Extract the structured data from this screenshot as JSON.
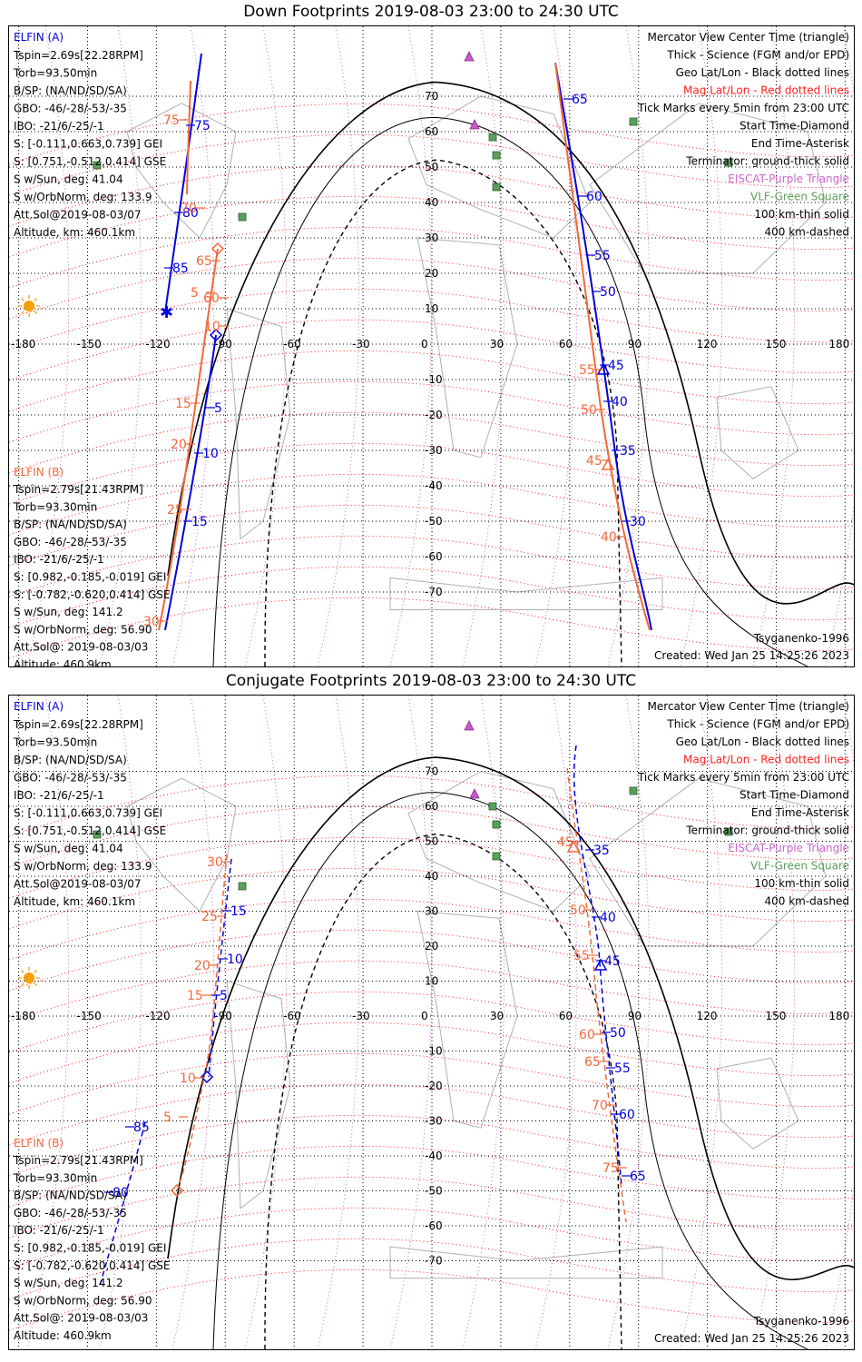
{
  "colors": {
    "sc_a": "#0000dd",
    "sc_b": "#f4673a",
    "mag_grid": "#ff2020",
    "geo_grid": "#000000",
    "isr": "#cc66cc",
    "vlf": "#5aa05a",
    "coast": "#b0b0b0"
  },
  "panels": [
    {
      "title": "Down Footprints 2019-08-03 23:00 to 24:30 UTC",
      "elfin_a": {
        "header": "ELFIN (A)",
        "lines": [
          "Tspin=2.69s[22.28RPM]",
          "Torb=93.50min",
          "B/SP: (NA/ND/SD/SA)",
          "GBO: -46/-28/-53/-35",
          "IBO: -21/6/-25/-1",
          "S: [-0.111,0.663,0.739] GEI",
          "S: [0.751,-0.512,0.414] GSE",
          "S w/Sun, deg: 41.04",
          "S w/OrbNorm, deg: 133.9",
          "Att.Sol@2019-08-03/07",
          "Altitude, km: 460.1km"
        ]
      },
      "elfin_b": {
        "header": "ELFIN (B)",
        "lines": [
          "Tspin=2.79s[21.43RPM]",
          "Torb=93.30min",
          "B/SP: (NA/ND/SD/SA)",
          "GBO: -46/-28/-53/-35",
          "IBO: -21/6/-25/-1",
          "S: [0.982,-0.185,-0.019] GEI",
          "S: [-0.782,-0.620,0.414] GSE",
          "S w/Sun, deg: 141.2",
          "S w/OrbNorm, deg: 56.90",
          "Att.Sol@: 2019-08-03/03",
          "Altitude: 460.9km"
        ]
      },
      "legend": [
        "Mercator View Center Time (triangle)",
        "Thick - Science (FGM and/or EPD)",
        "Geo Lat/Lon - Black dotted lines",
        "Mag Lat/Lon - Red dotted lines",
        "Tick Marks every 5min from 23:00 UTC",
        "Start Time-Diamond",
        "End Time-Asterisk",
        "Terminator: ground-thick solid",
        "EISCAT-Purple Triangle",
        "VLF-Green Square",
        "100 km-thin solid",
        "400 km-dashed"
      ],
      "model": "Tsyganenko-1996",
      "created": "Created: Wed Jan 25 14:25:26 2023",
      "track_a_labels": [
        "75",
        "80",
        "85",
        "5",
        "10",
        "15",
        "65",
        "60",
        "55",
        "50",
        "45",
        "40",
        "35",
        "30"
      ],
      "track_b_labels": [
        "5",
        "10",
        "15",
        "20",
        "25",
        "30",
        "75",
        "70",
        "65",
        "60",
        "55",
        "50",
        "45",
        "40"
      ]
    },
    {
      "title": "Conjugate Footprints 2019-08-03 23:00 to 24:30 UTC",
      "elfin_a": {
        "header": "ELFIN (A)",
        "lines": [
          "Tspin=2.69s[22.28RPM]",
          "Torb=93.50min",
          "B/SP: (NA/ND/SD/SA)",
          "GBO: -46/-28/-53/-35",
          "IBO: -21/6/-25/-1",
          "S: [-0.111,0.663,0.739] GEI",
          "S: [0.751,-0.512,0.414] GSE",
          "S w/Sun, deg: 41.04",
          "S w/OrbNorm, deg: 133.9",
          "Att.Sol@2019-08-03/07",
          "Altitude, km: 460.1km"
        ]
      },
      "elfin_b": {
        "header": "ELFIN (B)",
        "lines": [
          "Tspin=2.79s[21.43RPM]",
          "Torb=93.30min",
          "B/SP: (NA/ND/SD/SA)",
          "GBO: -46/-28/-53/-35",
          "IBO: -21/6/-25/-1",
          "S: [0.982,-0.185,-0.019] GEI",
          "S: [-0.782,-0.620,0.414] GSE",
          "S w/Sun, deg: 141.2",
          "S w/OrbNorm, deg: 56.90",
          "Att.Sol@: 2019-08-03/03",
          "Altitude: 460.9km"
        ]
      },
      "legend": [
        "Mercator View Center Time (triangle)",
        "Thick - Science (FGM and/or EPD)",
        "Geo Lat/Lon - Black dotted lines",
        "Mag Lat/Lon - Red dotted lines",
        "Tick Marks every 5min from 23:00 UTC",
        "Start Time-Diamond",
        "End Time-Asterisk",
        "Terminator: ground-thick solid",
        "EISCAT-Purple Triangle",
        "VLF-Green Square",
        "100 km-thin solid",
        "400 km-dashed"
      ],
      "model": "Tsyganenko-1996",
      "created": "Created: Wed Jan 25 14:25:26 2023",
      "track_a_labels": [
        "15",
        "10",
        "5",
        "85",
        "80",
        "35",
        "40",
        "45",
        "50",
        "55",
        "60",
        "65"
      ],
      "track_b_labels": [
        "30",
        "25",
        "20",
        "15",
        "10",
        "5",
        "45",
        "50",
        "55",
        "60",
        "65",
        "70",
        "75"
      ]
    }
  ],
  "axes": {
    "lon_ticks": [
      "-180",
      "-150",
      "-120",
      "-90",
      "-60",
      "-30",
      "0",
      "30",
      "60",
      "90",
      "120",
      "150",
      "180"
    ],
    "lat_ticks": [
      "70",
      "60",
      "50",
      "40",
      "30",
      "20",
      "10",
      "-10",
      "-20",
      "-30",
      "-40",
      "-50",
      "-60",
      "-70"
    ]
  }
}
